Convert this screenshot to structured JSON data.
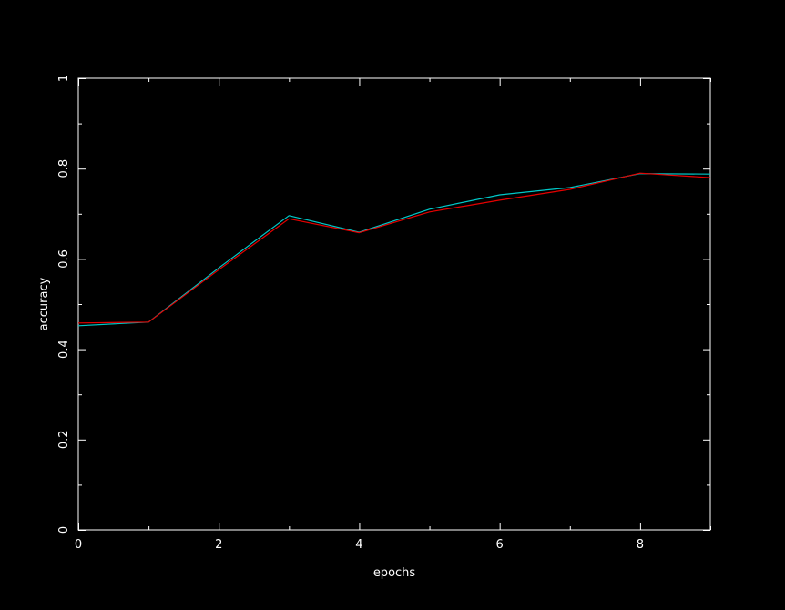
{
  "chart_data": {
    "type": "line",
    "title": "",
    "xlabel": "epochs",
    "ylabel": "accuracy",
    "xlim": [
      0,
      9
    ],
    "ylim": [
      0,
      1
    ],
    "x_ticks": [
      0,
      2,
      4,
      6,
      8
    ],
    "x_tick_labels": [
      "0",
      "2",
      "4",
      "6",
      "8"
    ],
    "y_ticks": [
      0,
      0.2,
      0.4,
      0.6,
      0.8,
      1
    ],
    "y_tick_labels": [
      "0",
      "0.2",
      "0.4",
      "0.6",
      "0.8",
      "1"
    ],
    "x_minor_step": 1,
    "y_minor_step": 0.1,
    "grid": false,
    "legend": "none",
    "x": [
      0,
      1,
      2,
      3,
      4,
      5,
      6,
      7,
      8,
      9
    ],
    "series": [
      {
        "color": "#00c8c8",
        "values": [
          0.452,
          0.46,
          0.58,
          0.696,
          0.659,
          0.71,
          0.742,
          0.758,
          0.789,
          0.788
        ]
      },
      {
        "color": "#e60000",
        "values": [
          0.458,
          0.46,
          0.576,
          0.689,
          0.658,
          0.704,
          0.73,
          0.754,
          0.79,
          0.78
        ]
      }
    ],
    "colors": {
      "background": "#000000",
      "axes": "#ffffff",
      "text": "#ffffff"
    }
  }
}
